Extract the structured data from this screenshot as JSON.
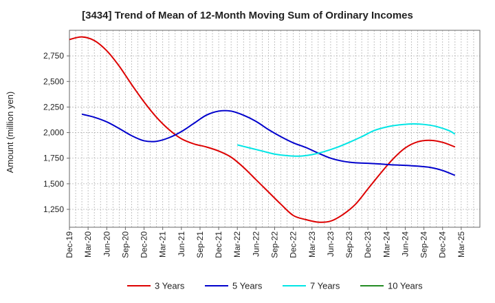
{
  "chart_data": {
    "type": "line",
    "title": "[3434]  Trend of Mean of 12-Month Moving Sum of Ordinary Incomes",
    "xlabel": "",
    "ylabel": "Amount (million yen)",
    "ylim": [
      1075,
      3000
    ],
    "yticks": [
      1250,
      1500,
      1750,
      2000,
      2250,
      2500,
      2750
    ],
    "ytick_labels": [
      "1,250",
      "1,500",
      "1,750",
      "2,000",
      "2,250",
      "2,500",
      "2,750"
    ],
    "x_start": "Dec-19",
    "x_end_index": 66,
    "xtick_labels": [
      "Dec-19",
      "Mar-20",
      "Jun-20",
      "Sep-20",
      "Dec-20",
      "Mar-21",
      "Jun-21",
      "Sep-21",
      "Dec-21",
      "Mar-22",
      "Jun-22",
      "Sep-22",
      "Dec-22",
      "Mar-23",
      "Jun-23",
      "Sep-23",
      "Dec-23",
      "Mar-24",
      "Jun-24",
      "Sep-24",
      "Dec-24",
      "Mar-25"
    ],
    "series": [
      {
        "name": "3 Years",
        "color": "#dd0000",
        "start_index": 0,
        "points": [
          [
            0,
            2910
          ],
          [
            2,
            2935
          ],
          [
            4,
            2900
          ],
          [
            6,
            2800
          ],
          [
            8,
            2650
          ],
          [
            10,
            2470
          ],
          [
            12,
            2300
          ],
          [
            14,
            2150
          ],
          [
            16,
            2030
          ],
          [
            18,
            1940
          ],
          [
            20,
            1890
          ],
          [
            22,
            1860
          ],
          [
            24,
            1820
          ],
          [
            26,
            1760
          ],
          [
            28,
            1660
          ],
          [
            30,
            1540
          ],
          [
            32,
            1420
          ],
          [
            34,
            1300
          ],
          [
            36,
            1190
          ],
          [
            38,
            1150
          ],
          [
            40,
            1125
          ],
          [
            42,
            1135
          ],
          [
            44,
            1200
          ],
          [
            46,
            1300
          ],
          [
            48,
            1450
          ],
          [
            50,
            1600
          ],
          [
            52,
            1740
          ],
          [
            54,
            1850
          ],
          [
            56,
            1910
          ],
          [
            58,
            1925
          ],
          [
            60,
            1905
          ],
          [
            62,
            1860
          ]
        ]
      },
      {
        "name": "5 Years",
        "color": "#0000cc",
        "start_index": 0,
        "points": [
          [
            2,
            2180
          ],
          [
            4,
            2150
          ],
          [
            6,
            2105
          ],
          [
            8,
            2040
          ],
          [
            10,
            1970
          ],
          [
            12,
            1920
          ],
          [
            14,
            1915
          ],
          [
            16,
            1950
          ],
          [
            18,
            2010
          ],
          [
            20,
            2090
          ],
          [
            22,
            2170
          ],
          [
            24,
            2210
          ],
          [
            26,
            2210
          ],
          [
            28,
            2170
          ],
          [
            30,
            2110
          ],
          [
            32,
            2030
          ],
          [
            34,
            1960
          ],
          [
            36,
            1900
          ],
          [
            38,
            1855
          ],
          [
            40,
            1800
          ],
          [
            42,
            1750
          ],
          [
            44,
            1720
          ],
          [
            46,
            1705
          ],
          [
            48,
            1700
          ],
          [
            50,
            1693
          ],
          [
            52,
            1685
          ],
          [
            54,
            1680
          ],
          [
            56,
            1672
          ],
          [
            58,
            1660
          ],
          [
            60,
            1630
          ],
          [
            62,
            1582
          ]
        ]
      },
      {
        "name": "7 Years",
        "color": "#00e5e5",
        "start_index": 0,
        "points": [
          [
            27,
            1880
          ],
          [
            29,
            1850
          ],
          [
            31,
            1820
          ],
          [
            33,
            1790
          ],
          [
            35,
            1775
          ],
          [
            37,
            1770
          ],
          [
            39,
            1785
          ],
          [
            41,
            1815
          ],
          [
            43,
            1855
          ],
          [
            45,
            1905
          ],
          [
            47,
            1960
          ],
          [
            49,
            2020
          ],
          [
            51,
            2055
          ],
          [
            53,
            2075
          ],
          [
            55,
            2085
          ],
          [
            57,
            2080
          ],
          [
            59,
            2060
          ],
          [
            61,
            2020
          ],
          [
            62,
            1985
          ]
        ]
      },
      {
        "name": "10 Years",
        "color": "#228b22",
        "start_index": 0,
        "points": []
      }
    ],
    "legend_position": "bottom",
    "grid": true
  }
}
